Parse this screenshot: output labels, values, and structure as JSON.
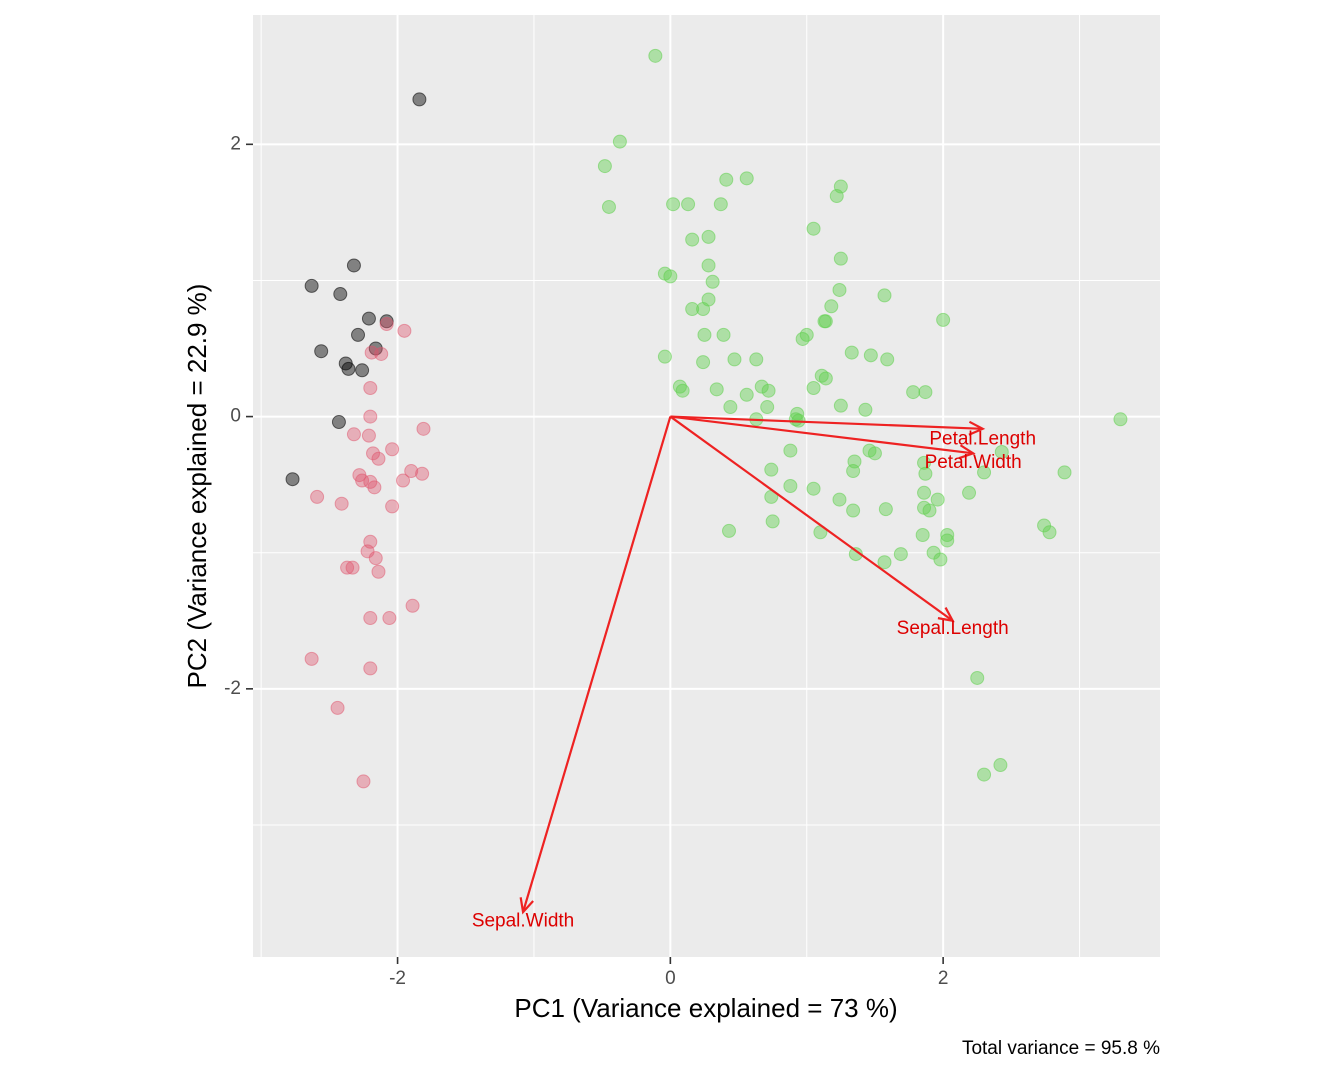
{
  "chart_data": {
    "type": "scatter",
    "xlabel": "PC1 (Variance explained = 73 %)",
    "ylabel": "PC2 (Variance explained = 22.9 %)",
    "caption": "Total variance = 95.8 %",
    "xlim": [
      -3.06,
      3.59
    ],
    "ylim": [
      -3.97,
      2.95
    ],
    "x_ticks": [
      -2,
      0,
      2
    ],
    "y_ticks": [
      -2,
      0,
      2
    ],
    "grid": true,
    "colors": {
      "panel": "#ebebeb",
      "grid": "#ffffff",
      "arrow": "#ee2222",
      "arrow_label": "#dd0000"
    },
    "series": [
      {
        "color": "#000000",
        "opacity": 0.45,
        "points": [
          [
            -1.84,
            2.33
          ],
          [
            -2.32,
            1.11
          ],
          [
            -2.63,
            0.96
          ],
          [
            -2.42,
            0.9
          ],
          [
            -2.21,
            0.72
          ],
          [
            -2.08,
            0.7
          ],
          [
            -2.16,
            0.5
          ],
          [
            -2.29,
            0.6
          ],
          [
            -2.56,
            0.48
          ],
          [
            -2.38,
            0.39
          ],
          [
            -2.36,
            0.35
          ],
          [
            -2.26,
            0.34
          ],
          [
            -2.43,
            -0.04
          ],
          [
            -2.77,
            -0.46
          ]
        ]
      },
      {
        "color": "#df536b",
        "opacity": 0.4,
        "points": [
          [
            -1.95,
            0.63
          ],
          [
            -2.08,
            0.68
          ],
          [
            -2.19,
            0.47
          ],
          [
            -2.12,
            0.46
          ],
          [
            -2.2,
            0.21
          ],
          [
            -2.2,
            0.0
          ],
          [
            -2.32,
            -0.13
          ],
          [
            -2.21,
            -0.14
          ],
          [
            -1.81,
            -0.09
          ],
          [
            -2.04,
            -0.24
          ],
          [
            -2.18,
            -0.27
          ],
          [
            -2.14,
            -0.31
          ],
          [
            -2.28,
            -0.43
          ],
          [
            -2.26,
            -0.47
          ],
          [
            -2.2,
            -0.48
          ],
          [
            -2.17,
            -0.52
          ],
          [
            -1.9,
            -0.4
          ],
          [
            -1.82,
            -0.42
          ],
          [
            -1.96,
            -0.47
          ],
          [
            -2.59,
            -0.59
          ],
          [
            -2.41,
            -0.64
          ],
          [
            -2.04,
            -0.66
          ],
          [
            -2.2,
            -0.92
          ],
          [
            -2.22,
            -0.99
          ],
          [
            -2.16,
            -1.04
          ],
          [
            -2.37,
            -1.11
          ],
          [
            -2.33,
            -1.11
          ],
          [
            -2.14,
            -1.14
          ],
          [
            -1.89,
            -1.39
          ],
          [
            -2.2,
            -1.48
          ],
          [
            -2.06,
            -1.48
          ],
          [
            -2.63,
            -1.78
          ],
          [
            -2.2,
            -1.85
          ],
          [
            -2.44,
            -2.14
          ],
          [
            -2.25,
            -2.68
          ]
        ]
      },
      {
        "color": "#61d04f",
        "opacity": 0.45,
        "points": [
          [
            -0.11,
            2.65
          ],
          [
            -0.37,
            2.02
          ],
          [
            -0.48,
            1.84
          ],
          [
            -0.45,
            1.54
          ],
          [
            0.41,
            1.74
          ],
          [
            0.56,
            1.75
          ],
          [
            0.02,
            1.56
          ],
          [
            0.13,
            1.56
          ],
          [
            0.37,
            1.56
          ],
          [
            1.25,
            1.69
          ],
          [
            1.22,
            1.62
          ],
          [
            1.05,
            1.38
          ],
          [
            0.16,
            1.3
          ],
          [
            0.28,
            1.32
          ],
          [
            0.28,
            1.11
          ],
          [
            1.25,
            1.16
          ],
          [
            -0.04,
            1.05
          ],
          [
            0.0,
            1.03
          ],
          [
            0.31,
            0.99
          ],
          [
            1.57,
            0.89
          ],
          [
            1.24,
            0.93
          ],
          [
            0.16,
            0.79
          ],
          [
            0.24,
            0.79
          ],
          [
            0.28,
            0.86
          ],
          [
            1.18,
            0.81
          ],
          [
            1.14,
            0.7
          ],
          [
            1.13,
            0.7
          ],
          [
            2.0,
            0.71
          ],
          [
            1.0,
            0.6
          ],
          [
            0.25,
            0.6
          ],
          [
            0.39,
            0.6
          ],
          [
            0.97,
            0.57
          ],
          [
            1.33,
            0.47
          ],
          [
            1.47,
            0.45
          ],
          [
            1.59,
            0.42
          ],
          [
            -0.04,
            0.44
          ],
          [
            0.24,
            0.4
          ],
          [
            0.47,
            0.42
          ],
          [
            0.63,
            0.42
          ],
          [
            1.11,
            0.3
          ],
          [
            1.14,
            0.28
          ],
          [
            0.07,
            0.22
          ],
          [
            0.09,
            0.19
          ],
          [
            0.34,
            0.2
          ],
          [
            0.67,
            0.22
          ],
          [
            0.72,
            0.19
          ],
          [
            0.56,
            0.16
          ],
          [
            1.78,
            0.18
          ],
          [
            1.87,
            0.18
          ],
          [
            1.05,
            0.21
          ],
          [
            0.44,
            0.07
          ],
          [
            0.71,
            0.07
          ],
          [
            1.25,
            0.08
          ],
          [
            1.43,
            0.05
          ],
          [
            0.93,
            0.02
          ],
          [
            0.92,
            -0.02
          ],
          [
            0.94,
            -0.03
          ],
          [
            0.63,
            -0.02
          ],
          [
            3.3,
            -0.02
          ],
          [
            2.43,
            -0.26
          ],
          [
            1.46,
            -0.25
          ],
          [
            1.5,
            -0.27
          ],
          [
            1.35,
            -0.33
          ],
          [
            1.86,
            -0.34
          ],
          [
            1.87,
            -0.42
          ],
          [
            2.3,
            -0.41
          ],
          [
            2.89,
            -0.41
          ],
          [
            0.74,
            -0.39
          ],
          [
            0.88,
            -0.25
          ],
          [
            1.34,
            -0.4
          ],
          [
            0.88,
            -0.51
          ],
          [
            1.05,
            -0.53
          ],
          [
            0.74,
            -0.59
          ],
          [
            1.24,
            -0.61
          ],
          [
            1.86,
            -0.56
          ],
          [
            2.19,
            -0.56
          ],
          [
            1.96,
            -0.61
          ],
          [
            1.34,
            -0.69
          ],
          [
            1.58,
            -0.68
          ],
          [
            1.86,
            -0.67
          ],
          [
            1.9,
            -0.69
          ],
          [
            2.74,
            -0.8
          ],
          [
            2.78,
            -0.85
          ],
          [
            0.43,
            -0.84
          ],
          [
            0.75,
            -0.77
          ],
          [
            1.1,
            -0.85
          ],
          [
            1.85,
            -0.87
          ],
          [
            2.03,
            -0.87
          ],
          [
            2.03,
            -0.91
          ],
          [
            1.93,
            -1.0
          ],
          [
            1.69,
            -1.01
          ],
          [
            1.36,
            -1.01
          ],
          [
            1.98,
            -1.05
          ],
          [
            1.57,
            -1.07
          ],
          [
            2.25,
            -1.92
          ],
          [
            2.3,
            -2.63
          ],
          [
            2.42,
            -2.56
          ]
        ]
      }
    ],
    "arrows": [
      {
        "label": "Petal.Length",
        "end": [
          2.29,
          -0.09
        ],
        "label_pos": [
          2.29,
          -0.17
        ]
      },
      {
        "label": "Petal.Width",
        "end": [
          2.22,
          -0.27
        ],
        "label_pos": [
          2.22,
          -0.34
        ]
      },
      {
        "label": "Sepal.Length",
        "end": [
          2.07,
          -1.5
        ],
        "label_pos": [
          2.07,
          -1.56
        ]
      },
      {
        "label": "Sepal.Width",
        "end": [
          -1.08,
          -3.64
        ],
        "label_pos": [
          -1.08,
          -3.71
        ]
      }
    ]
  }
}
